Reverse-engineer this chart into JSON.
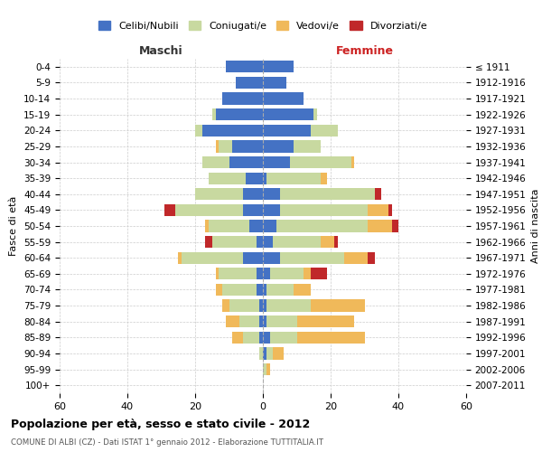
{
  "age_groups": [
    "0-4",
    "5-9",
    "10-14",
    "15-19",
    "20-24",
    "25-29",
    "30-34",
    "35-39",
    "40-44",
    "45-49",
    "50-54",
    "55-59",
    "60-64",
    "65-69",
    "70-74",
    "75-79",
    "80-84",
    "85-89",
    "90-94",
    "95-99",
    "100+"
  ],
  "birth_years": [
    "2007-2011",
    "2002-2006",
    "1997-2001",
    "1992-1996",
    "1987-1991",
    "1982-1986",
    "1977-1981",
    "1972-1976",
    "1967-1971",
    "1962-1966",
    "1957-1961",
    "1952-1956",
    "1947-1951",
    "1942-1946",
    "1937-1941",
    "1932-1936",
    "1927-1931",
    "1922-1926",
    "1917-1921",
    "1912-1916",
    "≤ 1911"
  ],
  "maschi_celibi": [
    11,
    8,
    12,
    14,
    18,
    9,
    10,
    5,
    6,
    6,
    4,
    2,
    6,
    2,
    2,
    1,
    1,
    1,
    0,
    0,
    0
  ],
  "maschi_coniugati": [
    0,
    0,
    0,
    1,
    2,
    4,
    8,
    11,
    14,
    20,
    12,
    13,
    18,
    11,
    10,
    9,
    6,
    5,
    1,
    0,
    0
  ],
  "maschi_vedovi": [
    0,
    0,
    0,
    0,
    0,
    1,
    0,
    0,
    0,
    0,
    1,
    0,
    1,
    1,
    2,
    2,
    4,
    3,
    0,
    0,
    0
  ],
  "maschi_divorziati": [
    0,
    0,
    0,
    0,
    0,
    0,
    0,
    0,
    0,
    3,
    0,
    2,
    0,
    0,
    0,
    0,
    0,
    0,
    0,
    0,
    0
  ],
  "femmine_celibi": [
    9,
    7,
    12,
    15,
    14,
    9,
    8,
    1,
    5,
    5,
    4,
    3,
    5,
    2,
    1,
    1,
    1,
    2,
    1,
    0,
    0
  ],
  "femmine_coniugati": [
    0,
    0,
    0,
    1,
    8,
    8,
    18,
    16,
    28,
    26,
    27,
    14,
    19,
    10,
    8,
    13,
    9,
    8,
    2,
    1,
    0
  ],
  "femmine_vedovi": [
    0,
    0,
    0,
    0,
    0,
    0,
    1,
    2,
    0,
    6,
    7,
    4,
    7,
    2,
    5,
    16,
    17,
    20,
    3,
    1,
    0
  ],
  "femmine_divorziati": [
    0,
    0,
    0,
    0,
    0,
    0,
    0,
    0,
    2,
    1,
    2,
    1,
    2,
    5,
    0,
    0,
    0,
    0,
    0,
    0,
    0
  ],
  "color_celibi": "#4472C4",
  "color_coniugati": "#c8d9a0",
  "color_vedovi": "#f0b95a",
  "color_divorziati": "#c0282a",
  "title_main": "Popolazione per età, sesso e stato civile - 2012",
  "title_sub": "COMUNE DI ALBI (CZ) - Dati ISTAT 1° gennaio 2012 - Elaborazione TUTTITALIA.IT",
  "xlabel_left": "Maschi",
  "xlabel_right": "Femmine",
  "ylabel_left": "Fasce di età",
  "ylabel_right": "Anni di nascita",
  "xlim": 60,
  "legend_labels": [
    "Celibi/Nubili",
    "Coniugati/e",
    "Vedovi/e",
    "Divorziati/e"
  ],
  "background_color": "#ffffff",
  "grid_color": "#cccccc"
}
